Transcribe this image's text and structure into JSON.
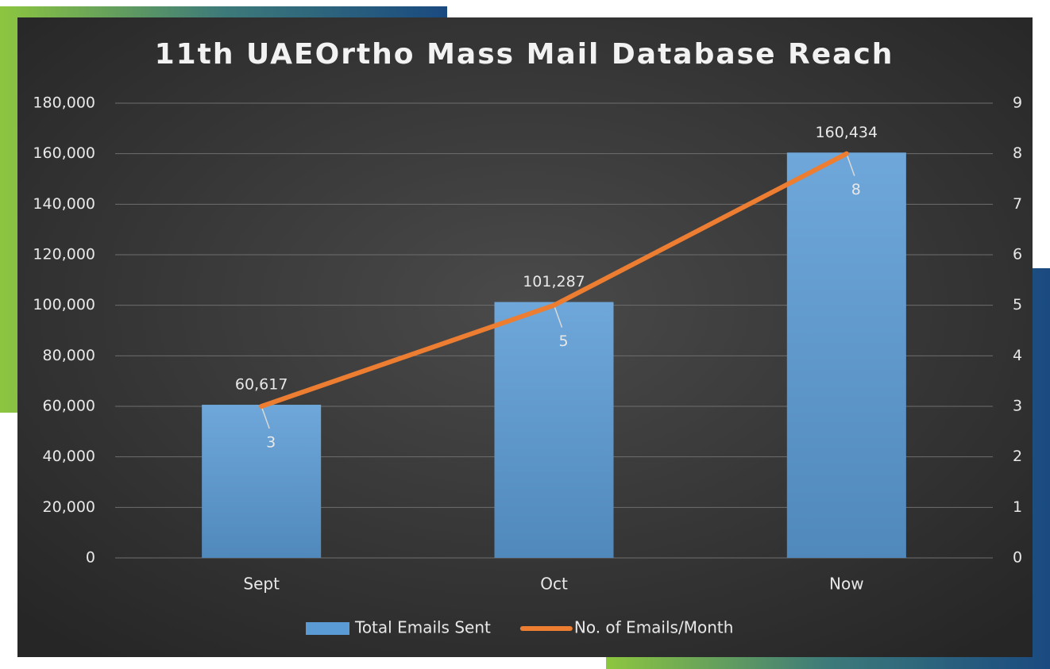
{
  "chart_data": {
    "type": "bar",
    "title": "11th UAEOrtho Mass Mail Database Reach",
    "categories": [
      "Sept",
      "Oct",
      "Now"
    ],
    "series": [
      {
        "name": "Total Emails Sent",
        "type": "bar",
        "color": "#5b9bd5",
        "values": [
          60617,
          101287,
          160434
        ],
        "value_labels": [
          "60,617",
          "101,287",
          "160,434"
        ]
      },
      {
        "name": "No. of Emails/Month",
        "type": "line",
        "axis": "y2",
        "color": "#ed7d31",
        "values": [
          3,
          5,
          8
        ]
      }
    ],
    "ylim": [
      0,
      180000
    ],
    "yticks": [
      0,
      {
        "value": 20000,
        "label": "20,000"
      },
      {
        "value": 40000,
        "label": "40,000"
      },
      {
        "value": 60000,
        "label": "60,000"
      },
      {
        "value": 80000,
        "label": "80,000"
      },
      {
        "value": 100000,
        "label": "100,000"
      },
      {
        "value": 120000,
        "label": "120,000"
      },
      {
        "value": 140000,
        "label": "140,000"
      },
      {
        "value": 160000,
        "label": "160,000"
      },
      {
        "value": 180000,
        "label": "180,000"
      }
    ],
    "y2lim": [
      0,
      9
    ],
    "y2ticks": [
      0,
      1,
      2,
      3,
      4,
      5,
      6,
      7,
      8,
      9
    ],
    "grid": true,
    "legend": "bottom"
  }
}
